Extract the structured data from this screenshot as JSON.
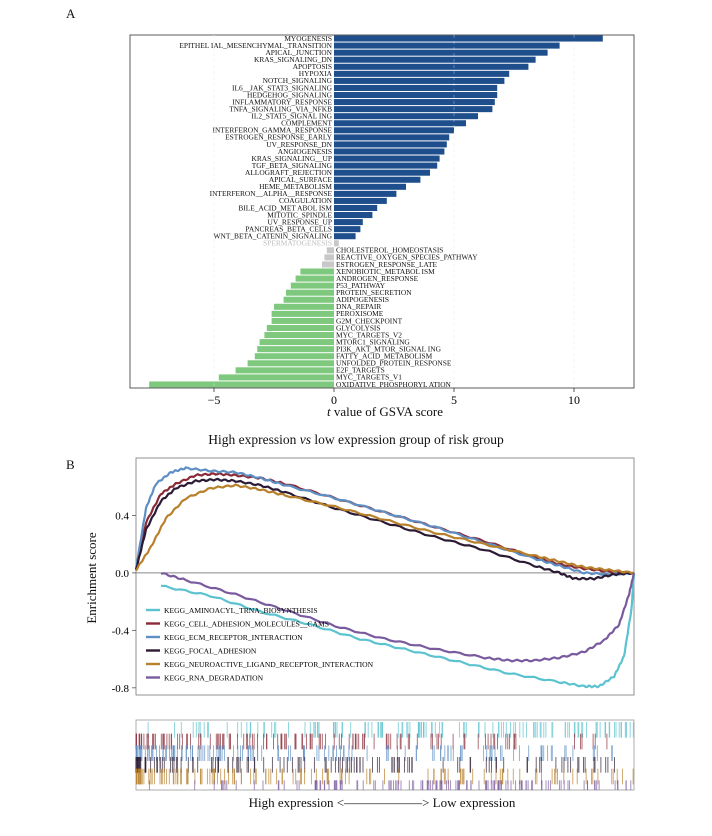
{
  "panel_a_label": "A",
  "panel_b_label": "B",
  "chart_data": [
    {
      "type": "bar",
      "orientation": "horizontal",
      "xlabel_var": "t",
      "xlabel_rest": " value of GSVA score",
      "caption_pre": "High expression ",
      "caption_vs": "vs",
      "caption_post": " low expression group of risk group",
      "xlim": [
        -8.5,
        12.5
      ],
      "xticks": [
        -5,
        0,
        5,
        10
      ],
      "colors": {
        "up": "#1f4e8c",
        "down": "#7fc97f",
        "ns": "#c8c8c8"
      },
      "categories": [
        "MYOGENESIS",
        "EPITHEL IAL_MESENCHYMAL_TRANSITION",
        "APICAL_JUNCTION",
        "KRAS_SIGNALING_DN",
        "APOPTOSIS",
        "HYPOXIA",
        "NOTCH_SIGNALING",
        "IL6__JAK_STAT3_SIGNALING",
        "HEDGEHOG_SIGNALING",
        "INFLAMMATORY_RESPONSE",
        "TNFA_SIGNALING_VIA_NFKB",
        "IL2_STAT5_SIGNAL ING",
        "COMPLEMENT",
        "INTERFERON_GAMMA_RESPONSE",
        "ESTROGEN_RESPONSE_EARLY",
        "UV_RESPONSE_DN",
        "ANGIOGENESIS",
        "KRAS_SIGNALING__UP",
        "TGF_BETA_SIGNALING",
        "ALLOGRAFT_REJECTION",
        "APICAL_SURFACE",
        "HEME_METABOLISM",
        "INTERFERON__ALPHA__RESPONSE",
        "COAGULATION",
        "BILE_ACID_MET ABOL ISM",
        "MITOTIC_SPINDLE",
        "UV_RESPONSE_UP",
        "PANCREAS_BETA_CELLS",
        "WNT_BETA_CATENIN_SIGNALING",
        "SPERMATOGENESIS",
        "CHOLESTEROL_HOMEOSTASIS",
        "REACTIVE_OXYGEN_SPECIES_PATHWAY",
        "ESTROGEN_RESPONSE_LATE",
        "XENOBIOTIC_METABOL ISM",
        "ANDROGEN_RESPONSE",
        "P53_PATHWAY",
        "PROTEIN_SECRETION",
        "ADIPOGENESIS",
        "DNA_REPAIR",
        "PEROXISOME",
        "G2M_CHECKPOINT",
        "GLYCOLYSIS",
        "MYC_TARGETS_V2",
        "MTORC1_SIGNALING",
        "PI3K_AKT_MTOR_SIGNAL ING",
        "FATTY_ACID_METABOLISM",
        "UNFOLDED_PROTEIN_RESPONSE",
        "E2F_TARGETS",
        "MYC_TARGETS_V1",
        "OXIDATIVE_PHOSPHORYL ATION"
      ],
      "values": [
        11.2,
        9.4,
        8.9,
        8.4,
        8.1,
        7.3,
        7.1,
        6.8,
        6.8,
        6.7,
        6.6,
        6.0,
        5.5,
        5.0,
        4.8,
        4.7,
        4.6,
        4.4,
        4.3,
        4.0,
        3.6,
        3.0,
        2.6,
        2.2,
        1.8,
        1.6,
        1.2,
        1.1,
        0.9,
        0.2,
        -0.3,
        -0.4,
        -0.5,
        -1.4,
        -1.6,
        -1.8,
        -2.0,
        -2.1,
        -2.5,
        -2.6,
        -2.6,
        -2.8,
        -2.9,
        -3.1,
        -3.2,
        -3.3,
        -3.6,
        -4.1,
        -4.8,
        -7.7
      ],
      "significance": [
        "up",
        "up",
        "up",
        "up",
        "up",
        "up",
        "up",
        "up",
        "up",
        "up",
        "up",
        "up",
        "up",
        "up",
        "up",
        "up",
        "up",
        "up",
        "up",
        "up",
        "up",
        "up",
        "up",
        "up",
        "up",
        "up",
        "up",
        "up",
        "up",
        "ns",
        "ns",
        "ns",
        "ns",
        "down",
        "down",
        "down",
        "down",
        "down",
        "down",
        "down",
        "down",
        "down",
        "down",
        "down",
        "down",
        "down",
        "down",
        "down",
        "down",
        "down"
      ]
    },
    {
      "type": "line",
      "ylabel": "Enrichment score",
      "xlabel": "High expression <——————> Low expression",
      "ylim": [
        -0.85,
        0.8
      ],
      "yticks": [
        0.4,
        0.0,
        -0.4,
        -0.8
      ],
      "ytick_labels": [
        "0.4",
        "0.0",
        "-0.4",
        "-0.8"
      ],
      "x_range": [
        0,
        1
      ],
      "legend_position": "lower-left",
      "series": [
        {
          "name": "KEGG_AMINOACYL_TRNA_BIOSYNTHESIS",
          "color": "#5bc3cf",
          "x": [
            0.05,
            0.15,
            0.25,
            0.35,
            0.45,
            0.55,
            0.65,
            0.75,
            0.85,
            0.9,
            0.93,
            0.96,
            0.98,
            0.995,
            1.0
          ],
          "y": [
            -0.09,
            -0.16,
            -0.27,
            -0.36,
            -0.46,
            -0.54,
            -0.62,
            -0.7,
            -0.76,
            -0.79,
            -0.79,
            -0.72,
            -0.58,
            -0.25,
            0.0
          ]
        },
        {
          "name": "KEGG_CELL_ADHESION_MOLECULES__CAMS",
          "color": "#8a2a36",
          "x": [
            0.0,
            0.02,
            0.05,
            0.08,
            0.12,
            0.16,
            0.2,
            0.25,
            0.3,
            0.4,
            0.5,
            0.6,
            0.7,
            0.8,
            0.85,
            0.9,
            0.95,
            1.0
          ],
          "y": [
            0.02,
            0.35,
            0.55,
            0.62,
            0.68,
            0.69,
            0.68,
            0.66,
            0.62,
            0.52,
            0.42,
            0.32,
            0.22,
            0.11,
            0.06,
            0.03,
            0.01,
            0.0
          ]
        },
        {
          "name": "KEGG_ECM_RECEPTOR_INTERACTION",
          "color": "#5e8fc4",
          "x": [
            0.0,
            0.02,
            0.04,
            0.07,
            0.1,
            0.15,
            0.2,
            0.25,
            0.3,
            0.4,
            0.5,
            0.6,
            0.7,
            0.8,
            0.85,
            0.9,
            0.95,
            1.0
          ],
          "y": [
            0.03,
            0.45,
            0.62,
            0.7,
            0.73,
            0.71,
            0.7,
            0.66,
            0.61,
            0.52,
            0.42,
            0.32,
            0.21,
            0.1,
            0.05,
            0.0,
            -0.01,
            0.0
          ]
        },
        {
          "name": "KEGG_FOCAL_ADHESION",
          "color": "#2b1a33",
          "x": [
            0.0,
            0.02,
            0.05,
            0.08,
            0.12,
            0.16,
            0.2,
            0.25,
            0.3,
            0.4,
            0.5,
            0.6,
            0.7,
            0.8,
            0.85,
            0.88,
            0.92,
            0.96,
            1.0
          ],
          "y": [
            0.02,
            0.3,
            0.5,
            0.59,
            0.64,
            0.65,
            0.64,
            0.61,
            0.56,
            0.45,
            0.35,
            0.25,
            0.16,
            0.05,
            0.0,
            -0.04,
            -0.04,
            -0.01,
            0.0
          ]
        },
        {
          "name": "KEGG_NEUROACTIVE_LIGAND_RECEPTOR_INTERACTION",
          "color": "#b8802a",
          "x": [
            0.0,
            0.03,
            0.06,
            0.1,
            0.15,
            0.2,
            0.25,
            0.3,
            0.4,
            0.5,
            0.6,
            0.7,
            0.8,
            0.85,
            0.9,
            0.95,
            1.0
          ],
          "y": [
            0.02,
            0.18,
            0.38,
            0.52,
            0.59,
            0.61,
            0.58,
            0.54,
            0.46,
            0.37,
            0.28,
            0.2,
            0.12,
            0.08,
            0.04,
            0.02,
            0.0
          ]
        },
        {
          "name": "KEGG_RNA_DEGRADATION",
          "color": "#7a5a9e",
          "x": [
            0.05,
            0.1,
            0.2,
            0.3,
            0.4,
            0.5,
            0.6,
            0.7,
            0.75,
            0.8,
            0.85,
            0.9,
            0.94,
            0.97,
            0.99,
            1.0
          ],
          "y": [
            0.0,
            -0.05,
            -0.15,
            -0.26,
            -0.37,
            -0.46,
            -0.53,
            -0.59,
            -0.61,
            -0.61,
            -0.59,
            -0.55,
            -0.47,
            -0.36,
            -0.15,
            0.0
          ]
        }
      ]
    }
  ]
}
